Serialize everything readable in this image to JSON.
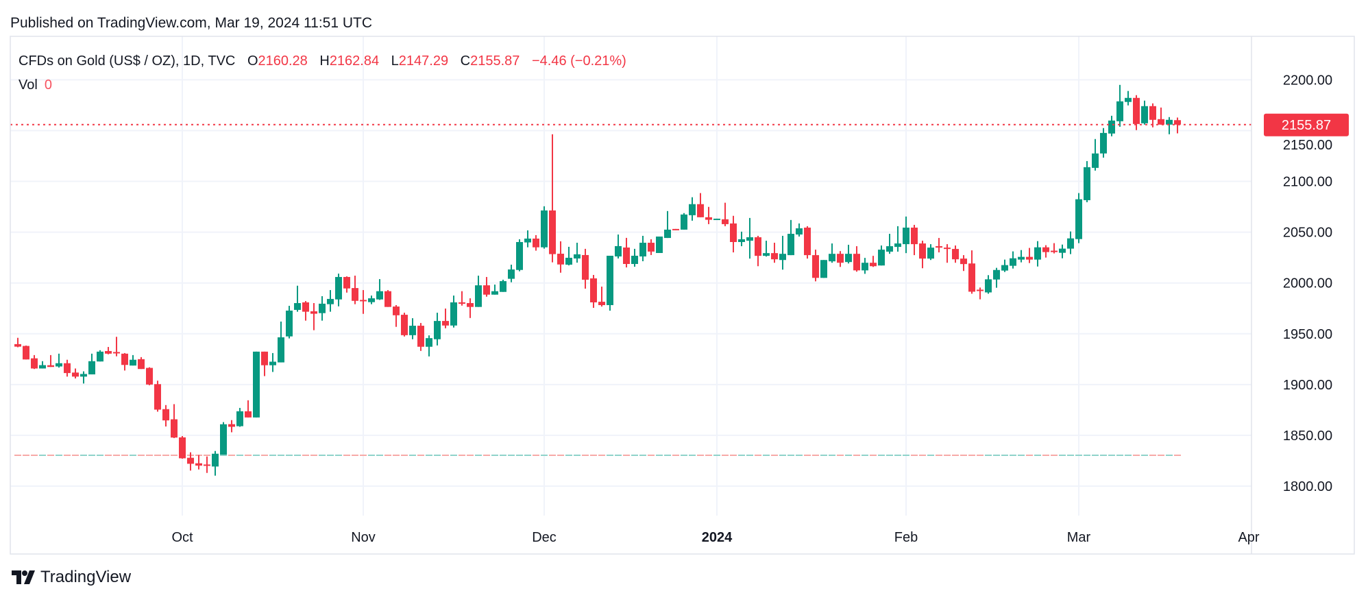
{
  "header": {
    "published": "Published on TradingView.com, Mar 19, 2024 11:51 UTC"
  },
  "legend": {
    "symbol": "CFDs on Gold (US$ / OZ), 1D, TVC",
    "o_label": "O",
    "o": "2160.28",
    "h_label": "H",
    "h": "2162.84",
    "l_label": "L",
    "l": "2147.29",
    "c_label": "C",
    "c": "2155.87",
    "change": "−4.46 (−0.21%)",
    "vol_label": "Vol",
    "vol_value": "0"
  },
  "last_price_badge": "2155.87",
  "brand": {
    "name": "TradingView"
  },
  "colors": {
    "up": "#089981",
    "down": "#F23645",
    "grid": "#F0F3FA",
    "up_vol": "#8FD3CA",
    "down_vol": "#F7A9A7"
  },
  "chart_data": {
    "type": "candlestick",
    "title": "CFDs on Gold (US$ / OZ), 1D, TVC",
    "y_ticks": [
      "1800.00",
      "1850.00",
      "1900.00",
      "1950.00",
      "2000.00",
      "2050.00",
      "2100.00",
      "2150.00",
      "2200.00"
    ],
    "ylim": [
      1765,
      2235
    ],
    "grid": true,
    "x_ticks": [
      {
        "label": "Oct",
        "date": "2023-10-02",
        "bold": false
      },
      {
        "label": "Nov",
        "date": "2023-11-01",
        "bold": false
      },
      {
        "label": "Dec",
        "date": "2023-12-01",
        "bold": false
      },
      {
        "label": "2024",
        "date": "2024-01-01",
        "bold": true
      },
      {
        "label": "Feb",
        "date": "2024-02-01",
        "bold": false
      },
      {
        "label": "Mar",
        "date": "2024-03-01",
        "bold": false
      },
      {
        "label": "Apr",
        "date": "2024-04-01",
        "bold": false
      }
    ],
    "last_price": 2155.87,
    "volume_all": 0,
    "columns": [
      "date",
      "open",
      "high",
      "low",
      "close"
    ],
    "candles": [
      [
        "2023-09-04",
        1939.8,
        1946,
        1936.7,
        1937.3
      ],
      [
        "2023-09-05",
        1938,
        1938.4,
        1924.7,
        1924.7
      ],
      [
        "2023-09-06",
        1925.8,
        1929,
        1915.3,
        1915.8
      ],
      [
        "2023-09-07",
        1915.8,
        1923,
        1915.8,
        1919.1
      ],
      [
        "2023-09-08",
        1919,
        1929,
        1917.3,
        1917.3
      ],
      [
        "2023-09-11",
        1917.8,
        1930.4,
        1916.7,
        1921
      ],
      [
        "2023-09-12",
        1921,
        1924.4,
        1907.8,
        1911.3
      ],
      [
        "2023-09-13",
        1911.8,
        1915.8,
        1906,
        1907.8
      ],
      [
        "2023-09-14",
        1907.8,
        1913,
        1901,
        1910.4
      ],
      [
        "2023-09-15",
        1910,
        1930.4,
        1910,
        1923
      ],
      [
        "2023-09-18",
        1922.7,
        1933.8,
        1922.7,
        1932.4
      ],
      [
        "2023-09-19",
        1933,
        1937,
        1929.8,
        1930.4
      ],
      [
        "2023-09-20",
        1932,
        1947,
        1927.8,
        1930.7
      ],
      [
        "2023-09-21",
        1930.4,
        1931,
        1913.8,
        1919.3
      ],
      [
        "2023-09-22",
        1918.7,
        1929,
        1918.7,
        1924.4
      ],
      [
        "2023-09-25",
        1925,
        1927,
        1915.3,
        1915.3
      ],
      [
        "2023-09-26",
        1916.4,
        1917,
        1899.3,
        1900
      ],
      [
        "2023-09-27",
        1900.4,
        1903.8,
        1873.3,
        1875.3
      ],
      [
        "2023-09-28",
        1875.8,
        1879.8,
        1858.7,
        1864.7
      ],
      [
        "2023-09-29",
        1865.8,
        1880.7,
        1847.3,
        1847.8
      ],
      [
        "2023-10-02",
        1848,
        1849.3,
        1827,
        1827.4
      ],
      [
        "2023-10-03",
        1827.9,
        1833.3,
        1815.3,
        1822
      ],
      [
        "2023-10-04",
        1822.5,
        1830.6,
        1816.4,
        1820.2
      ],
      [
        "2023-10-05",
        1821.3,
        1829.2,
        1813,
        1820.2
      ],
      [
        "2023-10-06",
        1819.3,
        1834.6,
        1810.3,
        1831.9
      ],
      [
        "2023-10-09",
        1831,
        1863,
        1831,
        1860.9
      ],
      [
        "2023-10-10",
        1861,
        1865,
        1853,
        1858.4
      ],
      [
        "2023-10-11",
        1859,
        1877,
        1858.4,
        1873.7
      ],
      [
        "2023-10-12",
        1873.7,
        1884.5,
        1867.6,
        1867.6
      ],
      [
        "2023-10-13",
        1867.6,
        1932.4,
        1867.6,
        1932.4
      ],
      [
        "2023-10-16",
        1932.4,
        1932.4,
        1908.3,
        1919
      ],
      [
        "2023-10-17",
        1919,
        1931,
        1912.4,
        1922.5
      ],
      [
        "2023-10-18",
        1921.8,
        1962,
        1921.8,
        1946.5
      ],
      [
        "2023-10-19",
        1947.4,
        1977.5,
        1945.4,
        1972.8
      ],
      [
        "2023-10-20",
        1973.5,
        1997.3,
        1971.7,
        1980.2
      ],
      [
        "2023-10-23",
        1980.9,
        1982.2,
        1962.9,
        1971.7
      ],
      [
        "2023-10-24",
        1972.1,
        1980.2,
        1953.5,
        1969.7
      ],
      [
        "2023-10-25",
        1970.3,
        1987,
        1962.9,
        1979.6
      ],
      [
        "2023-10-26",
        1979.1,
        1993,
        1971.7,
        1984.3
      ],
      [
        "2023-10-27",
        1983.8,
        2009.2,
        1977,
        2005.9
      ],
      [
        "2023-10-30",
        2005.9,
        2006.5,
        1990.5,
        1994.6
      ],
      [
        "2023-10-31",
        1995,
        2007.2,
        1979.1,
        1982.4
      ],
      [
        "2023-11-01",
        1983.3,
        1993,
        1969.6,
        1982
      ],
      [
        "2023-11-02",
        1981.1,
        1987.6,
        1979.1,
        1984.9
      ],
      [
        "2023-11-03",
        1983.8,
        2003.8,
        1983.3,
        1991.9
      ],
      [
        "2023-11-06",
        1991.9,
        1993,
        1976.4,
        1976.4
      ],
      [
        "2023-11-07",
        1976.8,
        1978.2,
        1956.8,
        1968.2
      ],
      [
        "2023-11-08",
        1968.7,
        1970.7,
        1947.3,
        1948.6
      ],
      [
        "2023-11-09",
        1948.6,
        1965.3,
        1944.6,
        1957.9
      ],
      [
        "2023-11-10",
        1957.9,
        1960.6,
        1933.1,
        1937.2
      ],
      [
        "2023-11-13",
        1937.2,
        1948.4,
        1927.7,
        1945.7
      ],
      [
        "2023-11-14",
        1944.6,
        1970.7,
        1938.5,
        1962.6
      ],
      [
        "2023-11-15",
        1962.6,
        1974.8,
        1955.4,
        1958.1
      ],
      [
        "2023-11-16",
        1958.1,
        1987.6,
        1956.1,
        1980.9
      ],
      [
        "2023-11-17",
        1980.9,
        1991.9,
        1977.7,
        1979.7
      ],
      [
        "2023-11-20",
        1980.2,
        1984.9,
        1965.5,
        1976.4
      ],
      [
        "2023-11-21",
        1976.4,
        2007.2,
        1976.4,
        1997.7
      ],
      [
        "2023-11-22",
        1997.7,
        2005.9,
        1986.5,
        1988.5
      ],
      [
        "2023-11-23",
        1988.5,
        1998.4,
        1988.5,
        1991.9
      ],
      [
        "2023-11-24",
        1991.2,
        2003.2,
        1991.2,
        2001.8
      ],
      [
        "2023-11-27",
        2004.1,
        2018,
        2000.7,
        2013.3
      ],
      [
        "2023-11-28",
        2012.8,
        2043,
        2011.5,
        2040.3
      ],
      [
        "2023-11-29",
        2039.9,
        2051.8,
        2035.1,
        2043.7
      ],
      [
        "2023-11-30",
        2043.7,
        2047.1,
        2031.8,
        2035.1
      ],
      [
        "2023-12-01",
        2035.1,
        2075.5,
        2033.8,
        2071.4
      ],
      [
        "2023-12-04",
        2071.4,
        2146.4,
        2020.3,
        2028.4
      ],
      [
        "2023-12-05",
        2028.8,
        2041,
        2010.1,
        2018.2
      ],
      [
        "2023-12-06",
        2018,
        2035.6,
        2017.3,
        2024.8
      ],
      [
        "2023-12-07",
        2024.1,
        2039.6,
        2020,
        2028.2
      ],
      [
        "2023-12-08",
        2027.5,
        2033.6,
        1994.4,
        2003.2
      ],
      [
        "2023-12-11",
        2004.5,
        2007.9,
        1975.5,
        1980.9
      ],
      [
        "2023-12-12",
        1981.5,
        1996.4,
        1976.8,
        1978.2
      ],
      [
        "2023-12-13",
        1978.2,
        2026.8,
        1972.7,
        2026.8
      ],
      [
        "2023-12-14",
        2026.1,
        2047.7,
        2024.1,
        2036.3
      ],
      [
        "2023-12-15",
        2034.9,
        2044.4,
        2015.3,
        2018.7
      ],
      [
        "2023-12-18",
        2018.7,
        2033.6,
        2016,
        2026.8
      ],
      [
        "2023-12-19",
        2026.1,
        2046.4,
        2021.4,
        2039.6
      ],
      [
        "2023-12-20",
        2039.6,
        2043,
        2027.5,
        2030.9
      ],
      [
        "2023-12-21",
        2029.5,
        2045.7,
        2029.5,
        2045.7
      ],
      [
        "2023-12-22",
        2044.3,
        2070.8,
        2044.3,
        2052.5
      ],
      [
        "2023-12-25",
        2053.2,
        2053.2,
        2052,
        2052
      ],
      [
        "2023-12-26",
        2052.5,
        2068.8,
        2052.5,
        2067.4
      ],
      [
        "2023-12-27",
        2066.7,
        2084.4,
        2061.3,
        2077.6
      ],
      [
        "2023-12-28",
        2077.6,
        2088.5,
        2064.7,
        2064.7
      ],
      [
        "2023-12-29",
        2064.7,
        2074.9,
        2057.9,
        2062.2
      ],
      [
        "2024-01-01",
        2062.2,
        2063.3,
        2062.2,
        2063.3
      ],
      [
        "2024-01-02",
        2062.7,
        2079,
        2055.9,
        2057.9
      ],
      [
        "2024-01-03",
        2058.6,
        2066.1,
        2030.1,
        2040.3
      ],
      [
        "2024-01-04",
        2040.3,
        2050.5,
        2036.2,
        2043
      ],
      [
        "2024-01-05",
        2041.6,
        2064,
        2024,
        2045
      ],
      [
        "2024-01-08",
        2045,
        2046.4,
        2016.5,
        2026.7
      ],
      [
        "2024-01-09",
        2026.7,
        2041.6,
        2026,
        2029.4
      ],
      [
        "2024-01-10",
        2029.4,
        2039.6,
        2019.9,
        2023.3
      ],
      [
        "2024-01-11",
        2022.6,
        2046.4,
        2013.1,
        2028.7
      ],
      [
        "2024-01-12",
        2027.4,
        2062,
        2027.4,
        2048.4
      ],
      [
        "2024-01-15",
        2047.7,
        2058.6,
        2045.7,
        2053.8
      ],
      [
        "2024-01-16",
        2054.5,
        2055.9,
        2024,
        2027.4
      ],
      [
        "2024-01-17",
        2027.4,
        2032.8,
        2001.6,
        2005
      ],
      [
        "2024-01-18",
        2005,
        2022.6,
        2005,
        2022.6
      ],
      [
        "2024-01-19",
        2021.3,
        2038.9,
        2019.9,
        2028.7
      ],
      [
        "2024-01-22",
        2028.7,
        2031.4,
        2015.8,
        2019.9
      ],
      [
        "2024-01-23",
        2020.6,
        2037.6,
        2019.2,
        2028.7
      ],
      [
        "2024-01-24",
        2028.7,
        2036.2,
        2011.1,
        2012.4
      ],
      [
        "2024-01-25",
        2012.4,
        2024.7,
        2009,
        2019.9
      ],
      [
        "2024-01-26",
        2019.9,
        2026.7,
        2015.8,
        2016.5
      ],
      [
        "2024-01-29",
        2017.2,
        2036.9,
        2017.2,
        2032.8
      ],
      [
        "2024-01-30",
        2030.8,
        2048.4,
        2028.7,
        2036.2
      ],
      [
        "2024-01-31",
        2035.5,
        2055.9,
        2030.8,
        2038.9
      ],
      [
        "2024-02-01",
        2038.2,
        2065.4,
        2029.4,
        2054.5
      ],
      [
        "2024-02-02",
        2054.5,
        2057.2,
        2027.4,
        2038.2
      ],
      [
        "2024-02-05",
        2038.9,
        2041.6,
        2014.5,
        2024
      ],
      [
        "2024-02-06",
        2024,
        2038.2,
        2022.6,
        2034.8
      ],
      [
        "2024-02-07",
        2036.2,
        2044.3,
        2030.1,
        2034.8
      ],
      [
        "2024-02-08",
        2034.8,
        2038.2,
        2019.9,
        2033.5
      ],
      [
        "2024-02-09",
        2033.5,
        2036.9,
        2019.9,
        2023.3
      ],
      [
        "2024-02-12",
        2024,
        2027.4,
        2011.8,
        2018.6
      ],
      [
        "2024-02-13",
        2019.2,
        2032.1,
        1989.4,
        1991.4
      ],
      [
        "2024-02-14",
        1993.4,
        1995.5,
        1983.9,
        1992.3
      ],
      [
        "2024-02-15",
        1990.7,
        2007.7,
        1989.4,
        2003.6
      ],
      [
        "2024-02-16",
        2003.4,
        2014.9,
        1995.3,
        2012.8
      ],
      [
        "2024-02-19",
        2012.2,
        2023,
        2010.8,
        2017.6
      ],
      [
        "2024-02-20",
        2016.9,
        2031.1,
        2014.2,
        2024.3
      ],
      [
        "2024-02-21",
        2023,
        2032.4,
        2020.3,
        2025.7
      ],
      [
        "2024-02-22",
        2025.7,
        2034.5,
        2019.6,
        2023
      ],
      [
        "2024-02-23",
        2023,
        2041.2,
        2016.2,
        2035.1
      ],
      [
        "2024-02-26",
        2035.1,
        2037.2,
        2025,
        2030.4
      ],
      [
        "2024-02-27",
        2031.8,
        2039.2,
        2029.1,
        2030.4
      ],
      [
        "2024-02-28",
        2029.7,
        2037.8,
        2024.3,
        2033.8
      ],
      [
        "2024-02-29",
        2033.8,
        2050.7,
        2028.4,
        2043.9
      ],
      [
        "2024-03-01",
        2043.2,
        2088.5,
        2039.2,
        2082.4
      ],
      [
        "2024-03-04",
        2081.5,
        2120,
        2079.5,
        2114
      ],
      [
        "2024-03-05",
        2113.3,
        2141.7,
        2110.6,
        2127.5
      ],
      [
        "2024-03-06",
        2127.5,
        2152.5,
        2123.4,
        2147.7
      ],
      [
        "2024-03-07",
        2147.1,
        2164.6,
        2144.4,
        2159.9
      ],
      [
        "2024-03-08",
        2159.2,
        2195,
        2153.8,
        2178.8
      ],
      [
        "2024-03-11",
        2178.2,
        2189,
        2174.8,
        2182.2
      ],
      [
        "2024-03-12",
        2182.2,
        2184.9,
        2150.5,
        2156.5
      ],
      [
        "2024-03-13",
        2157.2,
        2179.5,
        2155.9,
        2174.1
      ],
      [
        "2024-03-14",
        2174.1,
        2176.8,
        2153.2,
        2160.6
      ],
      [
        "2024-03-15",
        2161.3,
        2172.7,
        2155.9,
        2155.9
      ],
      [
        "2024-03-18",
        2155.9,
        2163.3,
        2146.4,
        2160.6
      ],
      [
        "2024-03-19",
        2160.28,
        2162.84,
        2147.29,
        2155.87
      ]
    ]
  }
}
